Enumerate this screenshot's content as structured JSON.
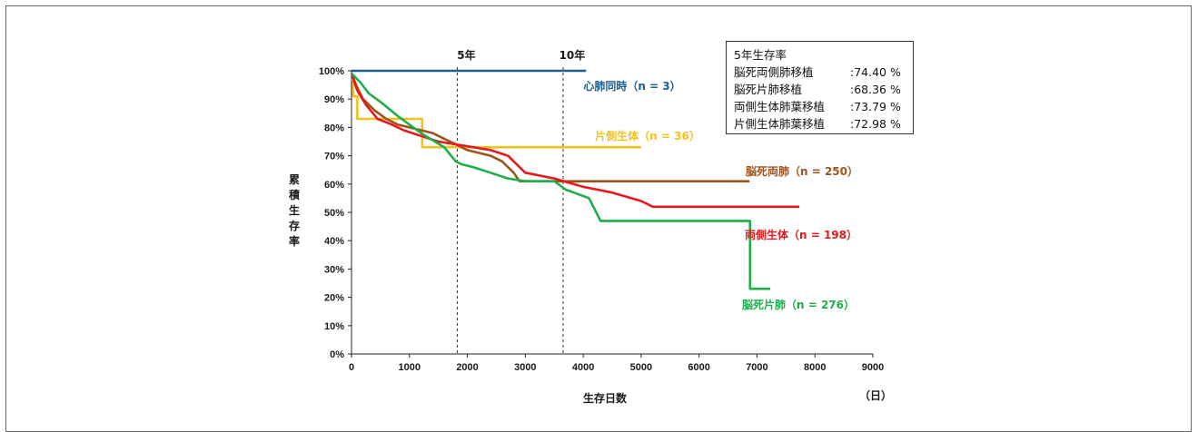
{
  "chart_data": {
    "type": "line",
    "xlabel": "生存日数",
    "x_unit": "（日）",
    "ylabel": "累積生存率",
    "xlim": [
      0,
      9000
    ],
    "ylim": [
      0,
      100
    ],
    "x_ticks": [
      "0",
      "1000",
      "2000",
      "3000",
      "4000",
      "5000",
      "6000",
      "7000",
      "8000",
      "9000"
    ],
    "y_ticks": [
      "0%",
      "10%",
      "20%",
      "30%",
      "40%",
      "50%",
      "60%",
      "70%",
      "80%",
      "90%",
      "100%"
    ],
    "vertical_markers": [
      {
        "label": "5年",
        "x": 1826
      },
      {
        "label": "10年",
        "x": 3652
      }
    ],
    "summary": {
      "title": "5年生存率",
      "rows": [
        {
          "label": "脳死両側肺移植",
          "value": ":74.40 %"
        },
        {
          "label": "脳死片肺移植",
          "value": ":68.36 %"
        },
        {
          "label": "両側生体肺葉移植",
          "value": ":73.79 %"
        },
        {
          "label": "片側生体肺葉移植",
          "value": ":72.98 %"
        }
      ]
    },
    "series": [
      {
        "name": "心肺同時（n = 3）",
        "color": "#1f5f8b",
        "points": [
          [
            0,
            100
          ],
          [
            4050,
            100
          ]
        ]
      },
      {
        "name": "片側生体（n = 36）",
        "color": "#f5c21b",
        "points": [
          [
            0,
            97
          ],
          [
            30,
            97
          ],
          [
            30,
            91
          ],
          [
            100,
            91
          ],
          [
            100,
            83
          ],
          [
            1220,
            83
          ],
          [
            1220,
            73
          ],
          [
            5000,
            73
          ]
        ]
      },
      {
        "name": "脳死両肺（n = 250）",
        "color": "#a0521d",
        "points": [
          [
            0,
            99
          ],
          [
            100,
            94
          ],
          [
            200,
            90
          ],
          [
            400,
            86
          ],
          [
            600,
            83
          ],
          [
            800,
            81
          ],
          [
            1000,
            80
          ],
          [
            1200,
            79
          ],
          [
            1400,
            78
          ],
          [
            1600,
            76
          ],
          [
            1800,
            74
          ],
          [
            2000,
            72
          ],
          [
            2200,
            71
          ],
          [
            2400,
            70
          ],
          [
            2600,
            68
          ],
          [
            2800,
            64
          ],
          [
            2900,
            61
          ],
          [
            3500,
            61
          ],
          [
            4000,
            61
          ],
          [
            6870,
            61
          ]
        ]
      },
      {
        "name": "両側生体（n = 198）",
        "color": "#e8191c",
        "points": [
          [
            0,
            99
          ],
          [
            100,
            93
          ],
          [
            250,
            88
          ],
          [
            450,
            83
          ],
          [
            700,
            81
          ],
          [
            900,
            79
          ],
          [
            1200,
            77
          ],
          [
            1500,
            75
          ],
          [
            1800,
            74
          ],
          [
            2100,
            73
          ],
          [
            2400,
            72
          ],
          [
            2700,
            70
          ],
          [
            3000,
            64
          ],
          [
            3500,
            62
          ],
          [
            4000,
            59
          ],
          [
            4500,
            57
          ],
          [
            5000,
            54
          ],
          [
            5200,
            52
          ],
          [
            6000,
            52
          ],
          [
            7730,
            52
          ]
        ]
      },
      {
        "name": "脳死片肺（n = 276）",
        "color": "#1fae4a",
        "points": [
          [
            0,
            99
          ],
          [
            150,
            96
          ],
          [
            300,
            92
          ],
          [
            500,
            89
          ],
          [
            800,
            84
          ],
          [
            1000,
            81
          ],
          [
            1200,
            78
          ],
          [
            1600,
            73
          ],
          [
            1800,
            68
          ],
          [
            1900,
            67
          ],
          [
            2100,
            66
          ],
          [
            2400,
            64
          ],
          [
            2700,
            62
          ],
          [
            3000,
            61
          ],
          [
            3500,
            61
          ],
          [
            3700,
            58
          ],
          [
            4100,
            55
          ],
          [
            4300,
            47
          ],
          [
            6000,
            47
          ],
          [
            6880,
            47
          ],
          [
            6880,
            23
          ],
          [
            7230,
            23
          ]
        ]
      }
    ]
  }
}
